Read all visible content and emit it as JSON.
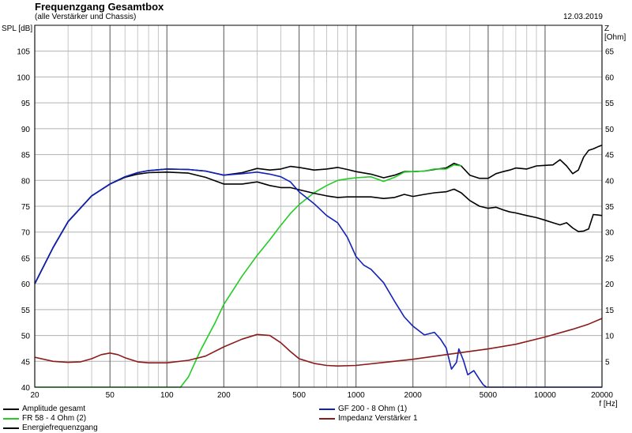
{
  "header": {
    "title": "Frequenzgang Gesamtbox",
    "subtitle": "(alle Verstärker und Chassis)",
    "date": "12.03.2019"
  },
  "axes": {
    "y_left_unit": "SPL [dB]",
    "y_right_unit": "Z [Ohm]",
    "x_unit": "f [Hz]"
  },
  "chart_data": {
    "type": "line",
    "title": "Frequenzgang Gesamtbox",
    "subtitle": "(alle Verstärker und Chassis)",
    "xlabel": "f [Hz]",
    "ylabel": "SPL [dB]",
    "ylabel_right": "Z [Ohm]",
    "x_scale": "log",
    "xlim": [
      20,
      20000
    ],
    "ylim": [
      40,
      110
    ],
    "ylim_right": [
      0,
      70
    ],
    "grid": true,
    "x_ticks": [
      20,
      50,
      100,
      200,
      500,
      1000,
      2000,
      5000,
      10000,
      20000
    ],
    "x_tick_labels": [
      "20",
      "50",
      "100",
      "200",
      "500",
      "1000",
      "2000",
      "5000",
      "10000",
      "20000"
    ],
    "y_ticks": [
      40,
      45,
      50,
      55,
      60,
      65,
      70,
      75,
      80,
      85,
      90,
      95,
      100,
      105
    ],
    "y_right_ticks": [
      5,
      10,
      15,
      20,
      25,
      30,
      35,
      40,
      45,
      50,
      55,
      60,
      65
    ],
    "legend_position": "bottom",
    "series": [
      {
        "name": "Amplitude gesamt",
        "axis": "left",
        "color": "#000000",
        "x": [
          20,
          25,
          30,
          40,
          50,
          60,
          70,
          80,
          100,
          130,
          160,
          200,
          250,
          300,
          350,
          400,
          450,
          500,
          600,
          700,
          800,
          900,
          1000,
          1200,
          1400,
          1600,
          1800,
          2000,
          2300,
          2600,
          3000,
          3300,
          3600,
          4000,
          4500,
          5000,
          5500,
          6000,
          6500,
          7000,
          8000,
          9000,
          10000,
          11000,
          12000,
          13000,
          14000,
          15000,
          16000,
          17000,
          18000,
          19000,
          20000
        ],
        "y": [
          60,
          67,
          72,
          77,
          79.3,
          80.7,
          81.5,
          81.9,
          82.2,
          82.1,
          81.8,
          81.0,
          81.5,
          82.3,
          82.0,
          82.2,
          82.7,
          82.5,
          82.0,
          82.2,
          82.5,
          82.1,
          81.7,
          81.2,
          80.5,
          81.0,
          81.7,
          81.7,
          81.8,
          82.1,
          82.4,
          83.3,
          82.8,
          81.0,
          80.4,
          80.4,
          81.3,
          81.7,
          82.0,
          82.4,
          82.2,
          82.8,
          82.9,
          83.0,
          84.0,
          82.8,
          81.3,
          82.0,
          84.5,
          85.8,
          86.1,
          86.5,
          86.8
        ]
      },
      {
        "name": "FR 58 - 4 Ohm (2)",
        "axis": "left",
        "color": "#22cc22",
        "x": [
          20,
          60,
          110,
          118,
          130,
          150,
          180,
          200,
          250,
          300,
          350,
          400,
          450,
          500,
          600,
          700,
          800,
          900,
          1000,
          1200,
          1400,
          1600,
          1800,
          2000,
          2300,
          2600,
          3000,
          3300,
          3600
        ],
        "y": [
          40,
          40,
          40,
          40,
          42,
          47,
          52.5,
          56,
          61.5,
          65.5,
          68.5,
          71.3,
          73.6,
          75.3,
          77.6,
          79,
          80,
          80.3,
          80.5,
          80.7,
          79.8,
          80.6,
          81.6,
          81.7,
          81.8,
          82.2,
          82.2,
          83.0,
          82.8
        ]
      },
      {
        "name": "Energiefrequenzgang",
        "axis": "left",
        "color": "#000000",
        "x": [
          20,
          25,
          30,
          40,
          50,
          60,
          70,
          80,
          100,
          130,
          160,
          200,
          250,
          300,
          350,
          400,
          450,
          500,
          600,
          700,
          800,
          900,
          1000,
          1200,
          1400,
          1600,
          1800,
          2000,
          2300,
          2600,
          3000,
          3300,
          3600,
          4000,
          4500,
          5000,
          5500,
          6000,
          6500,
          7000,
          8000,
          9000,
          10000,
          11000,
          12000,
          13000,
          14000,
          15000,
          16000,
          17000,
          18000,
          19000,
          20000
        ],
        "y": [
          60,
          67,
          72,
          77,
          79.3,
          80.6,
          81.2,
          81.5,
          81.6,
          81.4,
          80.6,
          79.3,
          79.3,
          79.7,
          79.0,
          78.6,
          78.6,
          78.2,
          77.5,
          77.0,
          76.7,
          76.8,
          76.8,
          76.8,
          76.5,
          76.7,
          77.3,
          76.9,
          77.3,
          77.6,
          77.8,
          78.3,
          77.6,
          76.1,
          75.0,
          74.6,
          74.8,
          74.3,
          73.9,
          73.7,
          73.2,
          72.8,
          72.3,
          71.8,
          71.4,
          71.8,
          70.8,
          70.1,
          70.2,
          70.6,
          73.4,
          73.3,
          73.2
        ]
      },
      {
        "name": "GF 200 - 8 Ohm (1)",
        "axis": "left",
        "color": "#1122bb",
        "x": [
          20,
          25,
          30,
          40,
          50,
          60,
          70,
          80,
          100,
          130,
          160,
          200,
          250,
          300,
          350,
          400,
          450,
          500,
          600,
          700,
          800,
          900,
          1000,
          1100,
          1200,
          1400,
          1600,
          1800,
          2000,
          2300,
          2600,
          2800,
          3000,
          3200,
          3400,
          3500,
          3700,
          3900,
          4200,
          4500,
          4700,
          4900,
          5000,
          5100,
          10000,
          20000
        ],
        "y": [
          60,
          67,
          72,
          77,
          79.3,
          80.7,
          81.5,
          81.9,
          82.2,
          82.1,
          81.8,
          81.0,
          81.3,
          81.6,
          81.2,
          80.7,
          79.7,
          77.8,
          75.5,
          73.2,
          71.8,
          69.0,
          65.3,
          63.6,
          62.8,
          60.2,
          56.6,
          53.6,
          51.8,
          50.1,
          50.6,
          49.3,
          47.6,
          43.5,
          44.8,
          47.4,
          45.2,
          42.4,
          43.2,
          41.5,
          40.5,
          40.0,
          40,
          40,
          40,
          40
        ]
      },
      {
        "name": "Impedanz Verstärker 1",
        "axis": "right",
        "color": "#8b1a1a",
        "x": [
          20,
          25,
          30,
          35,
          40,
          45,
          50,
          55,
          60,
          70,
          80,
          100,
          130,
          160,
          200,
          250,
          300,
          350,
          400,
          450,
          500,
          600,
          700,
          800,
          1000,
          1500,
          2000,
          3000,
          5000,
          7000,
          10000,
          14000,
          17000,
          20000
        ],
        "y": [
          5.8,
          5.0,
          4.8,
          4.9,
          5.5,
          6.3,
          6.6,
          6.3,
          5.7,
          4.9,
          4.7,
          4.7,
          5.2,
          6.0,
          7.8,
          9.3,
          10.2,
          10.0,
          8.6,
          6.9,
          5.5,
          4.6,
          4.2,
          4.1,
          4.2,
          4.9,
          5.4,
          6.3,
          7.4,
          8.3,
          9.7,
          11.2,
          12.2,
          13.3
        ]
      }
    ]
  },
  "legend": [
    {
      "label": "Amplitude gesamt",
      "color": "#000000"
    },
    {
      "label": "GF 200 - 8 Ohm (1)",
      "color": "#1122bb"
    },
    {
      "label": "FR 58 - 4 Ohm (2)",
      "color": "#22cc22"
    },
    {
      "label": "Impedanz Verstärker 1",
      "color": "#8b1a1a"
    },
    {
      "label": "Energiefrequenzgang",
      "color": "#000000"
    }
  ]
}
